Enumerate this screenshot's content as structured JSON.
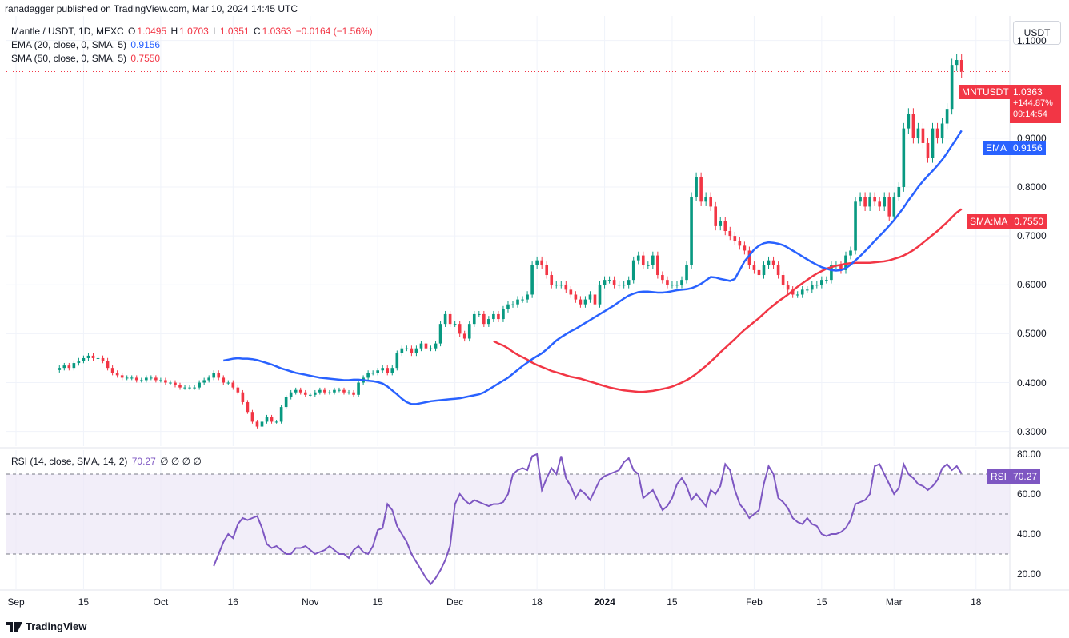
{
  "header": {
    "published_line": "ranadagger published on TradingView.com, Mar 10, 2024 14:45 UTC"
  },
  "legend": {
    "symbol": "Mantle / USDT, 1D, MEXC",
    "o_label": "O",
    "o_value": "1.0495",
    "h_label": "H",
    "h_value": "1.0703",
    "l_label": "L",
    "l_value": "1.0351",
    "c_label": "C",
    "c_value": "1.0363",
    "change": "−0.0164 (−1.56%)",
    "ema_label": "EMA (20, close, 0, SMA, 5)",
    "ema_value": "0.9156",
    "sma_label": "SMA (50, close, 0, SMA, 5)",
    "sma_value": "0.7550",
    "rsi_label": "RSI (14, close, SMA, 14, 2)",
    "rsi_value": "70.27",
    "rsi_extra": "∅ ∅ ∅ ∅"
  },
  "currency_button": "USDT",
  "price_tag": {
    "name": "MNTUSDT",
    "value": "1.0363",
    "change_pct": "+144.87%",
    "countdown": "09:14:54"
  },
  "ema_tag": {
    "name": "EMA",
    "value": "0.9156"
  },
  "sma_tag": {
    "name": "SMA:MA",
    "value": "0.7550"
  },
  "rsi_tag": {
    "name": "RSI",
    "value": "70.27"
  },
  "branding": "TradingView",
  "colors": {
    "up": "#089981",
    "down": "#f23645",
    "ema": "#2962ff",
    "sma": "#f23645",
    "rsi": "#7e57c2",
    "rsi_band": "#ede7f6",
    "grid": "#f0f3fa"
  },
  "chart_data": [
    {
      "type": "candlestick",
      "title": "Mantle / USDT, 1D, MEXC",
      "yaxis_ticks": [
        "0.3000",
        "0.4000",
        "0.5000",
        "0.6000",
        "0.7000",
        "0.8000",
        "0.9000",
        "1.1000"
      ],
      "ylim": [
        0.27,
        1.15
      ],
      "xaxis_ticks": [
        {
          "label": "Sep",
          "day": 1
        },
        {
          "label": "15",
          "day": 15
        },
        {
          "label": "Oct",
          "day": 31
        },
        {
          "label": "16",
          "day": 46
        },
        {
          "label": "Nov",
          "day": 62
        },
        {
          "label": "15",
          "day": 76
        },
        {
          "label": "Dec",
          "day": 92
        },
        {
          "label": "18",
          "day": 109
        },
        {
          "label": "2024",
          "day": 123,
          "bold": true
        },
        {
          "label": "15",
          "day": 137
        },
        {
          "label": "Feb",
          "day": 154
        },
        {
          "label": "15",
          "day": 168
        },
        {
          "label": "Mar",
          "day": 183
        },
        {
          "label": "18",
          "day": 200
        }
      ],
      "close": [
        0.43,
        0.435,
        0.43,
        0.44,
        0.445,
        0.45,
        0.455,
        0.45,
        0.45,
        0.445,
        0.43,
        0.42,
        0.415,
        0.41,
        0.41,
        0.41,
        0.405,
        0.405,
        0.41,
        0.41,
        0.405,
        0.405,
        0.4,
        0.4,
        0.395,
        0.39,
        0.39,
        0.39,
        0.39,
        0.4,
        0.405,
        0.41,
        0.42,
        0.41,
        0.4,
        0.4,
        0.39,
        0.38,
        0.36,
        0.34,
        0.32,
        0.31,
        0.32,
        0.33,
        0.32,
        0.32,
        0.35,
        0.37,
        0.38,
        0.385,
        0.38,
        0.375,
        0.375,
        0.38,
        0.385,
        0.38,
        0.38,
        0.385,
        0.385,
        0.38,
        0.38,
        0.375,
        0.4,
        0.41,
        0.42,
        0.42,
        0.425,
        0.43,
        0.42,
        0.43,
        0.46,
        0.47,
        0.47,
        0.46,
        0.47,
        0.48,
        0.47,
        0.47,
        0.48,
        0.52,
        0.54,
        0.52,
        0.52,
        0.5,
        0.49,
        0.52,
        0.54,
        0.54,
        0.52,
        0.53,
        0.54,
        0.53,
        0.55,
        0.56,
        0.56,
        0.57,
        0.57,
        0.58,
        0.64,
        0.65,
        0.64,
        0.62,
        0.6,
        0.6,
        0.6,
        0.59,
        0.58,
        0.57,
        0.56,
        0.57,
        0.58,
        0.56,
        0.6,
        0.61,
        0.61,
        0.6,
        0.6,
        0.6,
        0.61,
        0.65,
        0.66,
        0.64,
        0.64,
        0.66,
        0.62,
        0.61,
        0.6,
        0.6,
        0.6,
        0.61,
        0.64,
        0.78,
        0.82,
        0.77,
        0.78,
        0.76,
        0.72,
        0.73,
        0.71,
        0.7,
        0.69,
        0.68,
        0.67,
        0.64,
        0.63,
        0.62,
        0.64,
        0.65,
        0.64,
        0.62,
        0.6,
        0.59,
        0.58,
        0.58,
        0.59,
        0.59,
        0.6,
        0.6,
        0.61,
        0.61,
        0.64,
        0.64,
        0.63,
        0.66,
        0.67,
        0.77,
        0.78,
        0.76,
        0.78,
        0.77,
        0.76,
        0.78,
        0.74,
        0.78,
        0.8,
        0.92,
        0.95,
        0.9,
        0.92,
        0.89,
        0.86,
        0.92,
        0.9,
        0.93,
        0.96,
        1.05,
        1.06,
        1.0363
      ],
      "ema20": [
        0.445,
        0.447,
        0.449,
        0.45,
        0.449,
        0.449,
        0.448,
        0.446,
        0.443,
        0.44,
        0.437,
        0.433,
        0.429,
        0.426,
        0.423,
        0.42,
        0.418,
        0.416,
        0.414,
        0.412,
        0.41,
        0.409,
        0.408,
        0.407,
        0.406,
        0.405,
        0.405,
        0.406,
        0.406,
        0.405,
        0.404,
        0.403,
        0.401,
        0.398,
        0.392,
        0.384,
        0.376,
        0.367,
        0.36,
        0.356,
        0.356,
        0.358,
        0.36,
        0.362,
        0.363,
        0.364,
        0.365,
        0.366,
        0.367,
        0.368,
        0.37,
        0.372,
        0.374,
        0.376,
        0.38,
        0.386,
        0.392,
        0.398,
        0.404,
        0.41,
        0.418,
        0.426,
        0.434,
        0.441,
        0.448,
        0.454,
        0.46,
        0.468,
        0.477,
        0.486,
        0.493,
        0.499,
        0.505,
        0.51,
        0.516,
        0.522,
        0.528,
        0.534,
        0.54,
        0.546,
        0.552,
        0.558,
        0.565,
        0.572,
        0.578,
        0.582,
        0.585,
        0.586,
        0.586,
        0.585,
        0.584,
        0.584,
        0.585,
        0.587,
        0.589,
        0.59,
        0.591,
        0.593,
        0.597,
        0.602,
        0.609,
        0.616,
        0.615,
        0.612,
        0.61,
        0.608,
        0.612,
        0.63,
        0.648,
        0.66,
        0.672,
        0.68,
        0.685,
        0.687,
        0.686,
        0.684,
        0.681,
        0.676,
        0.67,
        0.664,
        0.658,
        0.652,
        0.646,
        0.641,
        0.636,
        0.633,
        0.63,
        0.629,
        0.63,
        0.634,
        0.641,
        0.65,
        0.659,
        0.669,
        0.679,
        0.69,
        0.7,
        0.71,
        0.721,
        0.732,
        0.745,
        0.758,
        0.773,
        0.786,
        0.8,
        0.812,
        0.823,
        0.833,
        0.844,
        0.856,
        0.87,
        0.885,
        0.9,
        0.9156
      ],
      "ema20_start_day": 0,
      "sma50_series": [
        0.485,
        0.48,
        0.476,
        0.47,
        0.463,
        0.457,
        0.452,
        0.447,
        0.441,
        0.436,
        0.432,
        0.428,
        0.424,
        0.421,
        0.418,
        0.415,
        0.412,
        0.41,
        0.408,
        0.405,
        0.402,
        0.399,
        0.396,
        0.393,
        0.39,
        0.388,
        0.386,
        0.384,
        0.383,
        0.382,
        0.381,
        0.381,
        0.382,
        0.383,
        0.385,
        0.387,
        0.389,
        0.392,
        0.396,
        0.4,
        0.405,
        0.411,
        0.418,
        0.426,
        0.434,
        0.443,
        0.452,
        0.462,
        0.471,
        0.48,
        0.489,
        0.499,
        0.508,
        0.516,
        0.524,
        0.532,
        0.541,
        0.55,
        0.558,
        0.566,
        0.573,
        0.58,
        0.588,
        0.596,
        0.603,
        0.61,
        0.617,
        0.623,
        0.628,
        0.633,
        0.636,
        0.639,
        0.641,
        0.643,
        0.644,
        0.645,
        0.645,
        0.645,
        0.645,
        0.646,
        0.647,
        0.648,
        0.65,
        0.653,
        0.656,
        0.66,
        0.665,
        0.671,
        0.678,
        0.686,
        0.694,
        0.702,
        0.71,
        0.719,
        0.728,
        0.738,
        0.748,
        0.755
      ]
    },
    {
      "type": "line",
      "title": "RSI (14, close, SMA, 14, 2)",
      "yaxis_ticks": [
        "20.00",
        "40.00",
        "60.00",
        "80.00"
      ],
      "ylim": [
        12,
        82
      ],
      "overbought": 70,
      "middle": 50,
      "oversold": 30,
      "values": [
        24,
        30,
        36,
        40,
        38,
        45,
        48,
        47,
        48,
        49,
        43,
        35,
        33,
        34,
        32,
        30,
        30,
        33,
        33,
        34,
        32,
        30,
        31,
        32,
        34,
        32,
        30,
        30,
        28,
        32,
        34,
        31,
        30,
        34,
        42,
        43,
        55,
        52,
        44,
        40,
        36,
        30,
        26,
        22,
        18,
        15,
        18,
        22,
        27,
        34,
        55,
        60,
        57,
        55,
        57,
        56,
        55,
        54,
        55,
        55,
        56,
        60,
        70,
        72,
        73,
        72,
        79,
        80,
        62,
        68,
        73,
        70,
        79,
        68,
        64,
        58,
        62,
        60,
        57,
        62,
        67,
        69,
        70,
        71,
        72,
        76,
        78,
        72,
        70,
        58,
        60,
        62,
        57,
        52,
        54,
        58,
        65,
        68,
        64,
        57,
        60,
        57,
        54,
        62,
        60,
        64,
        75,
        72,
        62,
        55,
        52,
        48,
        50,
        52,
        65,
        74,
        70,
        58,
        56,
        53,
        48,
        46,
        45,
        48,
        45,
        44,
        40,
        39,
        40,
        40,
        41,
        43,
        47,
        55,
        56,
        57,
        60,
        74,
        75,
        70,
        65,
        60,
        63,
        75,
        70,
        68,
        65,
        64,
        62,
        64,
        67,
        73,
        75,
        72,
        74,
        70.27
      ]
    }
  ]
}
